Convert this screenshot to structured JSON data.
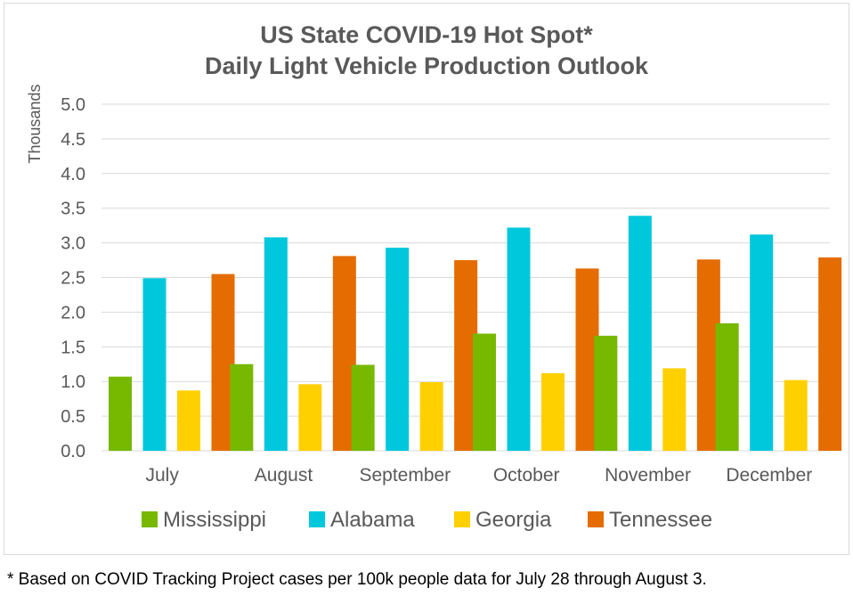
{
  "chart_data": {
    "type": "bar",
    "title": [
      "US State COVID-19 Hot Spot*",
      "Daily Light Vehicle Production Outlook"
    ],
    "ylabel": "Thousands",
    "xlabel": "",
    "ylim": [
      0,
      5.0
    ],
    "yticks": [
      "0.0",
      "0.5",
      "1.0",
      "1.5",
      "2.0",
      "2.5",
      "3.0",
      "3.5",
      "4.0",
      "4.5",
      "5.0"
    ],
    "grid": true,
    "legend_position": "bottom",
    "categories": [
      "July",
      "August",
      "September",
      "October",
      "November",
      "December"
    ],
    "series": [
      {
        "name": "Mississippi",
        "color": "#76b900",
        "values": [
          1.07,
          1.25,
          1.24,
          1.69,
          1.66,
          1.84
        ]
      },
      {
        "name": "Alabama",
        "color": "#00c8dc",
        "values": [
          2.49,
          3.08,
          2.93,
          3.22,
          3.39,
          3.12
        ]
      },
      {
        "name": "Georgia",
        "color": "#ffd000",
        "values": [
          0.87,
          0.96,
          0.99,
          1.12,
          1.19,
          1.02
        ]
      },
      {
        "name": "Tennessee",
        "color": "#e46c00",
        "values": [
          2.55,
          2.81,
          2.75,
          2.63,
          2.76,
          2.79
        ]
      }
    ]
  },
  "footnote": "* Based on COVID Tracking Project cases per 100k people data for July 28 through August 3."
}
